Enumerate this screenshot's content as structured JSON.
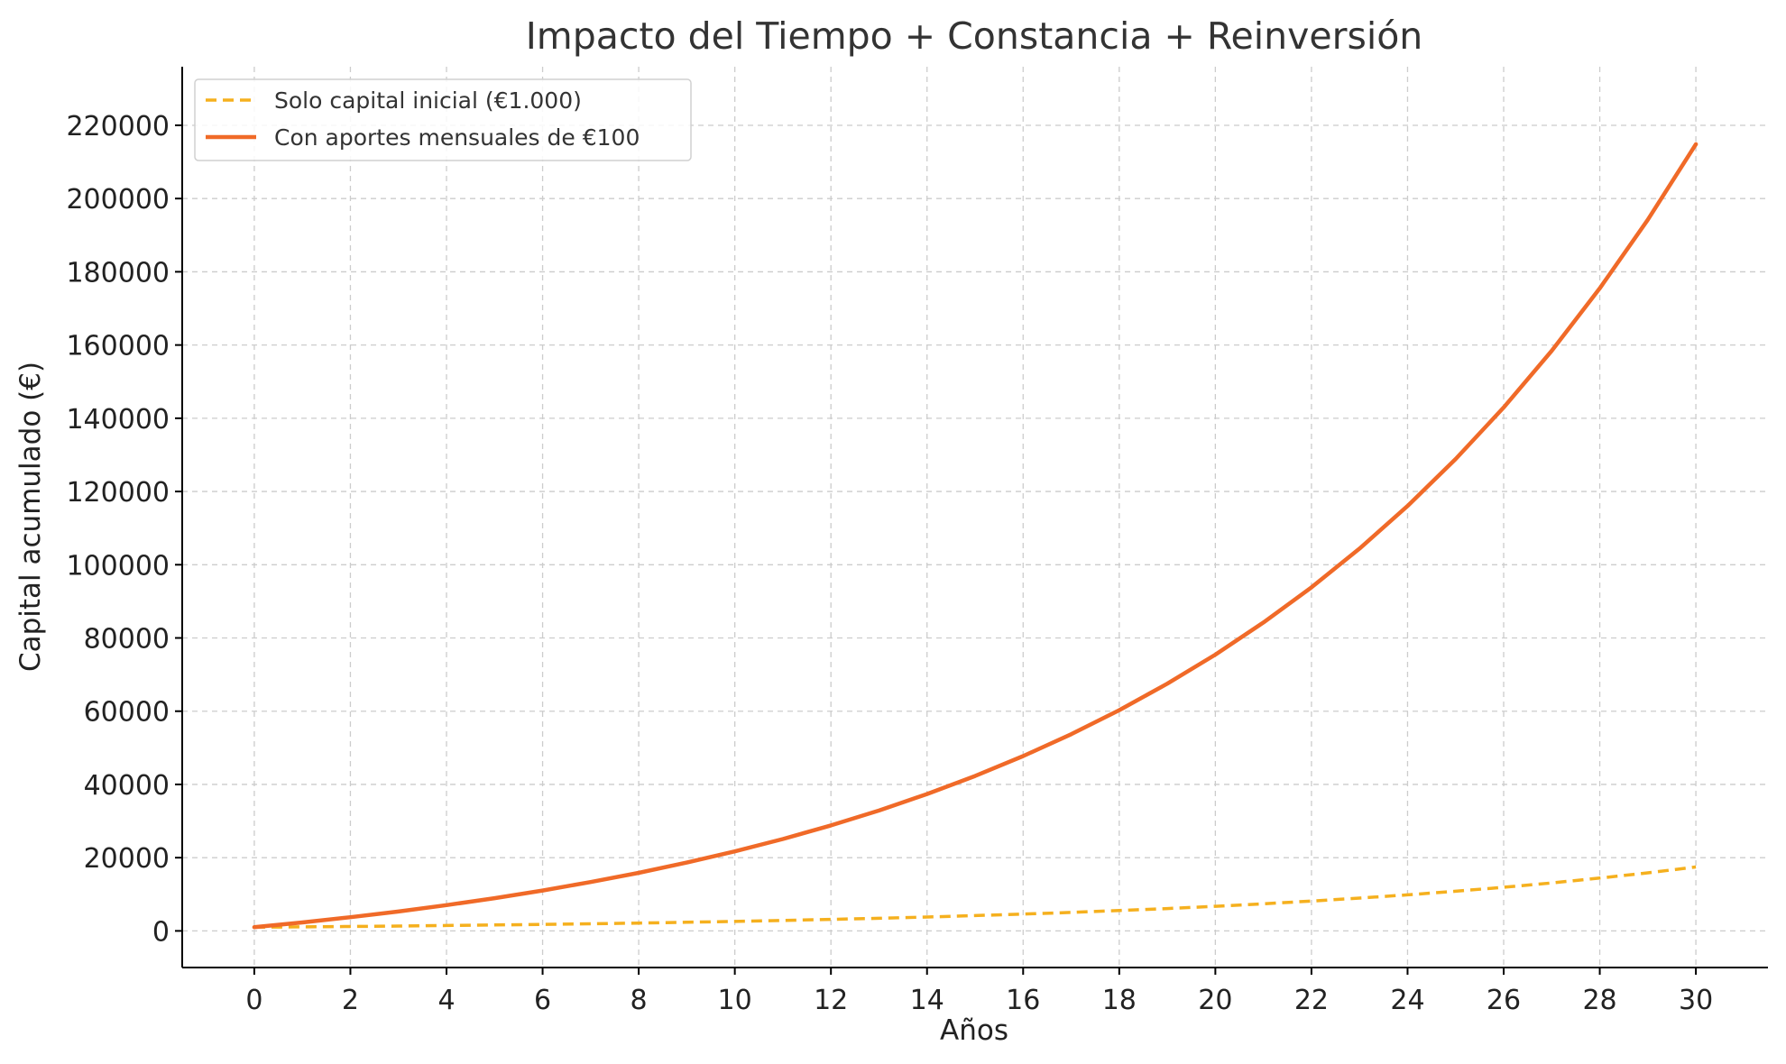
{
  "chart_data": {
    "type": "line",
    "title": "Impacto del Tiempo + Constancia + Reinversión",
    "xlabel": "Años",
    "ylabel": "Capital acumulado (€)",
    "xlim": [
      -1.5,
      31.5
    ],
    "ylim": [
      -10000,
      236000
    ],
    "xticks": [
      0,
      2,
      4,
      6,
      8,
      10,
      12,
      14,
      16,
      18,
      20,
      22,
      24,
      26,
      28,
      30
    ],
    "yticks": [
      0,
      20000,
      40000,
      60000,
      80000,
      100000,
      120000,
      140000,
      160000,
      180000,
      200000,
      220000
    ],
    "grid": true,
    "legend_position": "top-left",
    "x": [
      0,
      1,
      2,
      3,
      4,
      5,
      6,
      7,
      8,
      9,
      10,
      11,
      12,
      13,
      14,
      15,
      16,
      17,
      18,
      19,
      20,
      21,
      22,
      23,
      24,
      25,
      26,
      27,
      28,
      29,
      30
    ],
    "series": [
      {
        "name": "Solo capital inicial (€1.000)",
        "color": "#f5b01e",
        "style": "dashed",
        "values": [
          1000,
          1100,
          1210,
          1331,
          1464,
          1611,
          1772,
          1949,
          2144,
          2358,
          2594,
          2853,
          3138,
          3452,
          3797,
          4177,
          4595,
          5054,
          5560,
          6116,
          6727,
          7400,
          8140,
          8954,
          9850,
          10835,
          11918,
          13110,
          14421,
          15863,
          17449
        ]
      },
      {
        "name": "Con aportes mensuales de €100",
        "color": "#f06a28",
        "style": "solid",
        "values": [
          1000,
          2300,
          3730,
          5303,
          7033,
          8937,
          11030,
          13333,
          15866,
          18653,
          21718,
          25090,
          28799,
          32879,
          37367,
          42304,
          47734,
          53708,
          60279,
          67507,
          75458,
          84203,
          93824,
          104406,
          116047,
          128851,
          142936,
          158430,
          175473,
          194220,
          214842
        ]
      }
    ]
  }
}
